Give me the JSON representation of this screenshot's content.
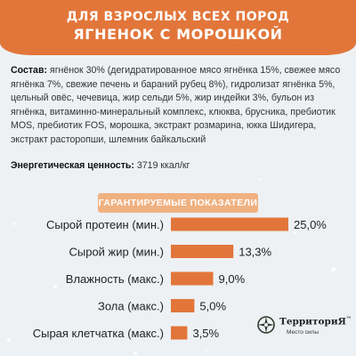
{
  "header": {
    "line1": "ДЛЯ ВЗРОСЛЫХ ВСЕХ ПОРОД",
    "line2": "ЯГНЕНОК С МОРОШКОЙ"
  },
  "composition": {
    "label": "Состав:",
    "text": "ягнёнок 30% (дегидратированное мясо ягнёнка 15%, свежее мясо ягнёнка 7%, свежие печень и бараний рубец 8%), гидролизат ягнёнка 5%, цельный овёс, чечевица, жир сельди 5%, жир индейки 3%, бульон из ягнёнка, витаминно-минеральный комплекс, клюква, брусника, пребиотик MOS, пребиотик FOS, морошка, экстракт розмарина, юкка Шидигера, экстракт расторопши, шлемник байкальский"
  },
  "energy": {
    "label": "Энергетическая ценность:",
    "value": "3719 ккал/кг"
  },
  "chart_data": {
    "type": "bar",
    "orientation": "horizontal",
    "title": "ГАРАНТИРУЕМЫЕ ПОКАЗАТЕЛИ",
    "categories": [
      "Сырой протеин (мин.)",
      "Сырой жир (мин.)",
      "Влажность (макс.)",
      "Зола (макс.)",
      "Сырая клетчатка (макс.)"
    ],
    "values": [
      25.0,
      13.3,
      9.0,
      5.0,
      3.5
    ],
    "value_labels": [
      "25,0%",
      "13,3%",
      "9,0%",
      "5,0%",
      "3,5%"
    ],
    "unit": "%",
    "xlim": [
      0,
      25
    ],
    "grid": false,
    "legend": "none",
    "bar_color": "#e2763a"
  },
  "logo": {
    "brand": "ТерриториЯ",
    "tagline": "Место силы",
    "trademark": "™"
  },
  "colors": {
    "accent": "#e2763a",
    "section_head": "#f0b181",
    "background": "#eef1f4"
  }
}
